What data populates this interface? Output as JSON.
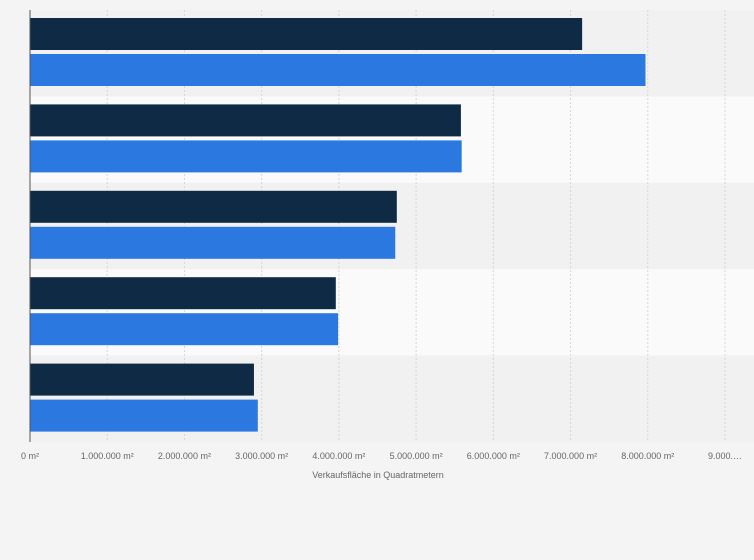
{
  "chart_data": {
    "type": "bar",
    "orientation": "horizontal",
    "title": "",
    "xlabel": "Verkaufsfläche in Quadratmetern",
    "ylabel": "",
    "categories": [
      "",
      "",
      "",
      "",
      ""
    ],
    "series": [
      {
        "color": "#0f2a44",
        "values": [
          7150000,
          5580000,
          4750000,
          3960000,
          2900000
        ]
      },
      {
        "color": "#2a78e0",
        "values": [
          7970000,
          5590000,
          4730000,
          3990000,
          2950000
        ]
      }
    ],
    "xlim": [
      0,
      9000000
    ],
    "x_ticks": [
      {
        "value": 0,
        "label": "0 m²"
      },
      {
        "value": 1000000,
        "label": "1.000.000 m²"
      },
      {
        "value": 2000000,
        "label": "2.000.000 m²"
      },
      {
        "value": 3000000,
        "label": "3.000.000 m²"
      },
      {
        "value": 4000000,
        "label": "4.000.000 m²"
      },
      {
        "value": 5000000,
        "label": "5.000.000 m²"
      },
      {
        "value": 6000000,
        "label": "6.000.000 m²"
      },
      {
        "value": 7000000,
        "label": "7.000.000 m²"
      },
      {
        "value": 8000000,
        "label": "8.000.000 m²"
      },
      {
        "value": 9000000,
        "label": "9.000.…"
      }
    ],
    "grid": true,
    "band_colors": [
      "#f1f1f1",
      "#fafafa"
    ],
    "legend": "none"
  }
}
